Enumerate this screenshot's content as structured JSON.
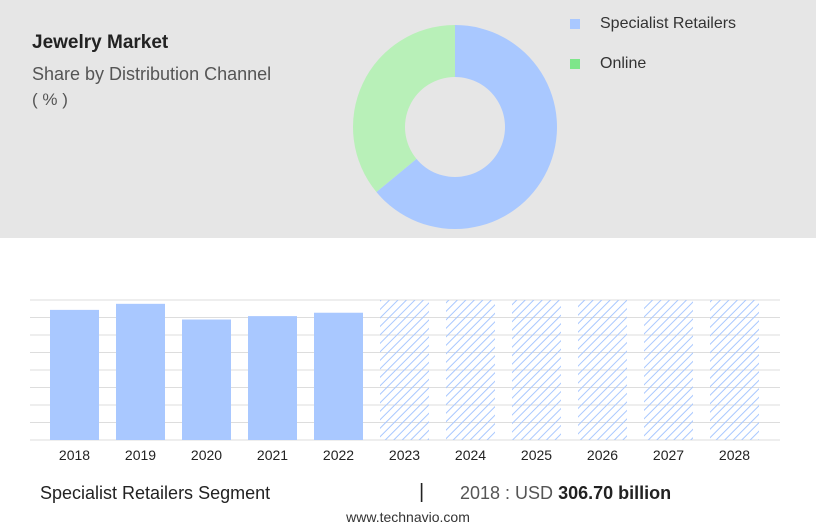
{
  "header": {
    "title": "Jewelry Market",
    "subtitle": "Share by Distribution Channel",
    "unit": "( % )"
  },
  "legend": [
    {
      "label": "Specialist Retailers",
      "color": "#a9c8ff"
    },
    {
      "label": "Online",
      "color": "#7ee68a"
    }
  ],
  "chart_data": [
    {
      "type": "pie",
      "donut": true,
      "series": [
        {
          "name": "Specialist Retailers",
          "value": 64,
          "color": "#a9c8ff"
        },
        {
          "name": "Online",
          "value": 36,
          "color": "#b8f0b8"
        }
      ]
    },
    {
      "type": "bar",
      "categories": [
        "2018",
        "2019",
        "2020",
        "2021",
        "2022",
        "2023",
        "2024",
        "2025",
        "2026",
        "2027",
        "2028"
      ],
      "values": [
        306.7,
        321,
        284,
        292,
        300,
        null,
        null,
        null,
        null,
        null,
        null
      ],
      "forecast_years": [
        "2023",
        "2024",
        "2025",
        "2026",
        "2027",
        "2028"
      ],
      "ylim": [
        0,
        330
      ],
      "grid": true,
      "bar_color": "#a9c8ff",
      "hatch_color": "#a9c8ff"
    }
  ],
  "footer": {
    "segment": "Specialist Retailers Segment",
    "separator": "|",
    "year_label": "2018 : USD",
    "value": "306.70 billion",
    "website": "www.technavio.com"
  }
}
